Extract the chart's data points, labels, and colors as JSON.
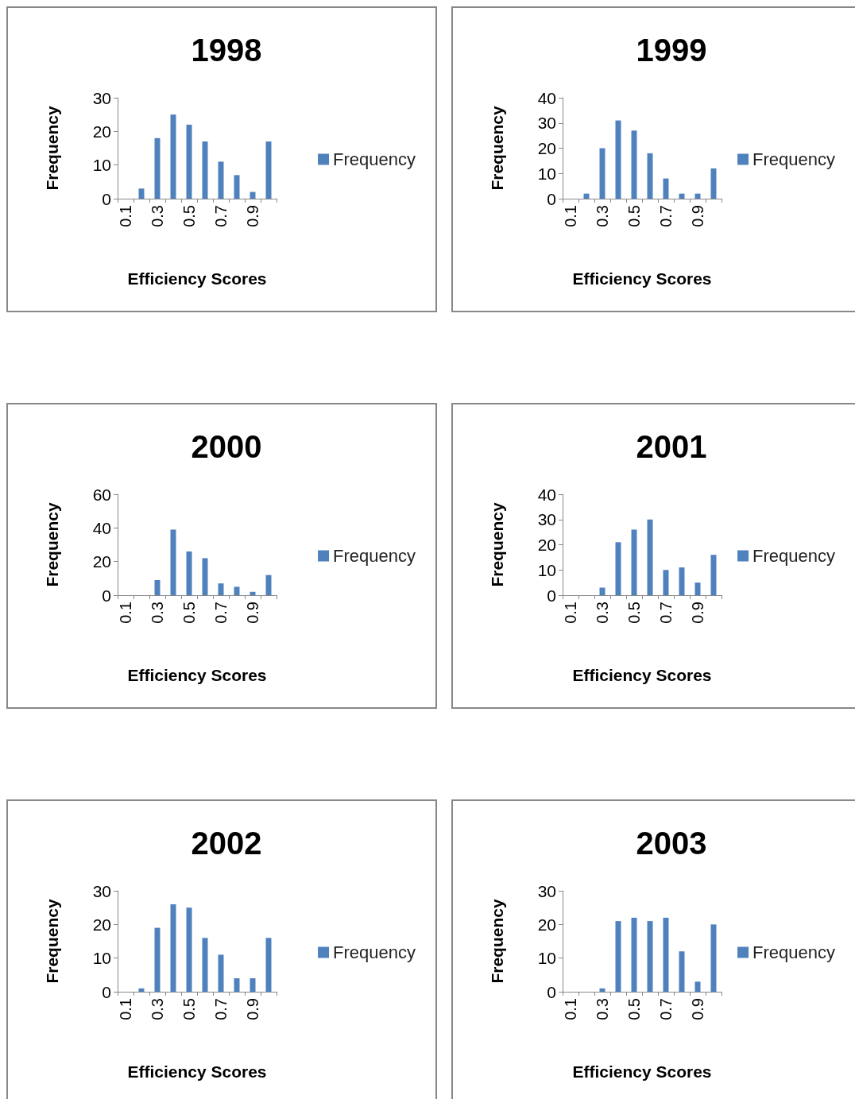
{
  "chart_data": [
    {
      "type": "bar",
      "title": "1998",
      "xlabel": "Efficiency Scores",
      "ylabel": "Frequency",
      "categories": [
        "0.1",
        null,
        "0.3",
        null,
        "0.5",
        null,
        "0.7",
        null,
        "0.9",
        null
      ],
      "series": [
        {
          "name": "Frequency",
          "color": "#4f81bd",
          "values": [
            0,
            3,
            18,
            25,
            22,
            17,
            11,
            7,
            2,
            17
          ]
        }
      ],
      "ylim": [
        0,
        30
      ],
      "yticks": [
        0,
        10,
        20,
        30
      ],
      "grid": false,
      "legend": "right"
    },
    {
      "type": "bar",
      "title": "1999",
      "xlabel": "Efficiency Scores",
      "ylabel": "Frequency",
      "categories": [
        "0.1",
        null,
        "0.3",
        null,
        "0.5",
        null,
        "0.7",
        null,
        "0.9",
        null
      ],
      "series": [
        {
          "name": "Frequency",
          "color": "#4f81bd",
          "values": [
            0,
            2,
            20,
            31,
            27,
            18,
            8,
            2,
            2,
            12
          ]
        }
      ],
      "ylim": [
        0,
        40
      ],
      "yticks": [
        0,
        10,
        20,
        30,
        40
      ],
      "grid": false,
      "legend": "right"
    },
    {
      "type": "bar",
      "title": "2000",
      "xlabel": "Efficiency Scores",
      "ylabel": "Frequency",
      "categories": [
        "0.1",
        null,
        "0.3",
        null,
        "0.5",
        null,
        "0.7",
        null,
        "0.9",
        null
      ],
      "series": [
        {
          "name": "Frequency",
          "color": "#4f81bd",
          "values": [
            0,
            0,
            9,
            39,
            26,
            22,
            7,
            5,
            2,
            12
          ]
        }
      ],
      "ylim": [
        0,
        60
      ],
      "yticks": [
        0,
        20,
        40,
        60
      ],
      "grid": false,
      "legend": "right"
    },
    {
      "type": "bar",
      "title": "2001",
      "xlabel": "Efficiency Scores",
      "ylabel": "Frequency",
      "categories": [
        "0.1",
        null,
        "0.3",
        null,
        "0.5",
        null,
        "0.7",
        null,
        "0.9",
        null
      ],
      "series": [
        {
          "name": "Frequency",
          "color": "#4f81bd",
          "values": [
            0,
            0,
            3,
            21,
            26,
            30,
            10,
            11,
            5,
            16
          ]
        }
      ],
      "ylim": [
        0,
        40
      ],
      "yticks": [
        0,
        10,
        20,
        30,
        40
      ],
      "grid": false,
      "legend": "right"
    },
    {
      "type": "bar",
      "title": "2002",
      "xlabel": "Efficiency Scores",
      "ylabel": "Frequency",
      "categories": [
        "0.1",
        null,
        "0.3",
        null,
        "0.5",
        null,
        "0.7",
        null,
        "0.9",
        null
      ],
      "series": [
        {
          "name": "Frequency",
          "color": "#4f81bd",
          "values": [
            0,
            1,
            19,
            26,
            25,
            16,
            11,
            4,
            4,
            16
          ]
        }
      ],
      "ylim": [
        0,
        30
      ],
      "yticks": [
        0,
        10,
        20,
        30
      ],
      "grid": false,
      "legend": "right"
    },
    {
      "type": "bar",
      "title": "2003",
      "xlabel": "Efficiency Scores",
      "ylabel": "Frequency",
      "categories": [
        "0.1",
        null,
        "0.3",
        null,
        "0.5",
        null,
        "0.7",
        null,
        "0.9",
        null
      ],
      "series": [
        {
          "name": "Frequency",
          "color": "#4f81bd",
          "values": [
            0,
            0,
            1,
            21,
            22,
            21,
            22,
            12,
            3,
            20
          ]
        }
      ],
      "ylim": [
        0,
        30
      ],
      "yticks": [
        0,
        10,
        20,
        30
      ],
      "grid": false,
      "legend": "right"
    }
  ]
}
